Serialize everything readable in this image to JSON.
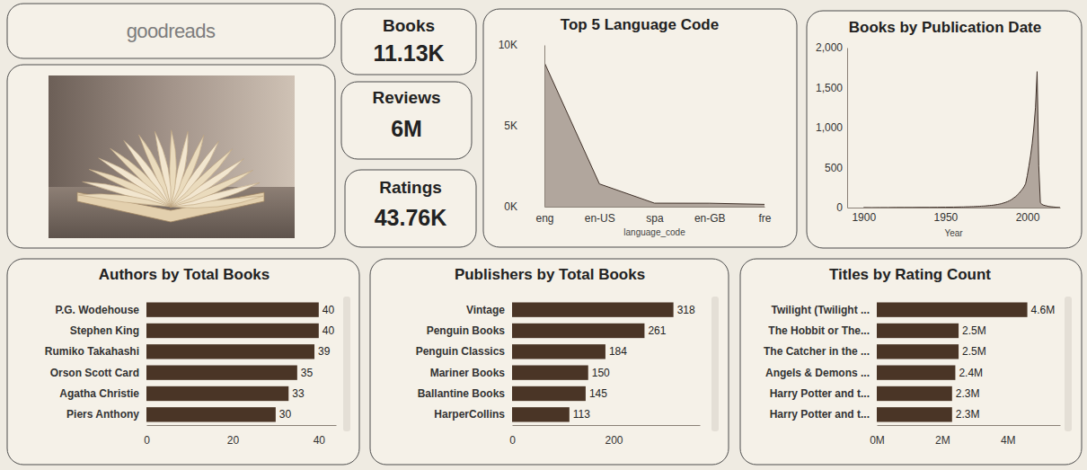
{
  "header": {
    "logo": "goodreads"
  },
  "cards": [
    {
      "title": "Books",
      "value": "11.13K"
    },
    {
      "title": "Reviews",
      "value": "6M"
    },
    {
      "title": "Ratings",
      "value": "43.76K"
    }
  ],
  "chart_data": [
    {
      "type": "area",
      "title": "Top 5 Language Code",
      "x_label": "language_code",
      "categories": [
        "eng",
        "en-US",
        "spa",
        "en-GB",
        "fre"
      ],
      "values": [
        8908,
        1408,
        218,
        214,
        144
      ],
      "color": "#b1a69d",
      "ylim": [
        0,
        10000
      ],
      "yticks": [
        {
          "value": 0,
          "label": "0K"
        },
        {
          "value": 5000,
          "label": "5K"
        },
        {
          "value": 10000,
          "label": "10K"
        }
      ]
    },
    {
      "type": "area",
      "title": "Books by Publication Date",
      "x_label": "Year",
      "x": [
        1900,
        1905,
        1910,
        1915,
        1920,
        1925,
        1930,
        1935,
        1940,
        1945,
        1950,
        1955,
        1960,
        1961,
        1962,
        1963,
        1964,
        1965,
        1966,
        1967,
        1968,
        1969,
        1970,
        1971,
        1972,
        1973,
        1974,
        1975,
        1976,
        1977,
        1978,
        1979,
        1980,
        1981,
        1982,
        1983,
        1984,
        1985,
        1986,
        1987,
        1988,
        1989,
        1990,
        1991,
        1992,
        1993,
        1994,
        1995,
        1996,
        1997,
        1998,
        1999,
        2000,
        2001,
        2002,
        2003,
        2004,
        2005,
        2006,
        2007,
        2008,
        2009,
        2010,
        2011,
        2012,
        2013,
        2014,
        2015,
        2016,
        2017,
        2018,
        2019,
        2020
      ],
      "values": [
        1,
        0,
        1,
        1,
        2,
        2,
        2,
        3,
        3,
        4,
        5,
        6,
        8,
        8,
        9,
        10,
        10,
        11,
        12,
        12,
        13,
        14,
        15,
        16,
        18,
        19,
        20,
        22,
        24,
        26,
        28,
        30,
        33,
        36,
        40,
        44,
        48,
        55,
        60,
        68,
        75,
        85,
        95,
        110,
        125,
        140,
        160,
        180,
        205,
        230,
        260,
        300,
        400,
        520,
        650,
        800,
        1000,
        1250,
        1700,
        520,
        60,
        40,
        30,
        25,
        20,
        15,
        12,
        10,
        8,
        6,
        4,
        3,
        1
      ],
      "color": "#b1a69d",
      "xlim": [
        1890,
        2020
      ],
      "xticks": [
        1900,
        1950,
        2000
      ],
      "ylim": [
        0,
        2000
      ],
      "yticks": [
        0,
        500,
        {
          "value": 1000,
          "label": "1,000"
        },
        {
          "value": 1500,
          "label": "1,500"
        },
        {
          "value": 2000,
          "label": "2,000"
        }
      ]
    },
    {
      "type": "bar",
      "orientation": "horizontal",
      "title": "Authors by Total Books",
      "categories": [
        "P.G. Wodehouse",
        "Stephen King",
        "Rumiko Takahashi",
        "Orson Scott Card",
        "Agatha Christie",
        "Piers Anthony"
      ],
      "values": [
        40,
        40,
        39,
        35,
        33,
        30
      ],
      "color": "#4a3526",
      "data_labels": true,
      "xlim": [
        0,
        44
      ],
      "xticks": [
        0,
        20,
        40
      ]
    },
    {
      "type": "bar",
      "orientation": "horizontal",
      "title": "Publishers by Total Books",
      "categories": [
        "Vintage",
        "Penguin Books",
        "Penguin Classics",
        "Mariner Books",
        "Ballantine Books",
        "HarperCollins"
      ],
      "values": [
        318,
        261,
        184,
        150,
        145,
        113
      ],
      "color": "#4a3526",
      "data_labels": true,
      "xlim": [
        0,
        370
      ],
      "xticks": [
        0,
        200
      ]
    },
    {
      "type": "bar",
      "orientation": "horizontal",
      "title": "Titles by Rating Count",
      "categories": [
        "Twilight (Twilight ...",
        "The Hobbit or The...",
        "The Catcher in the ...",
        "Angels & Demons ...",
        "Harry Potter and t...",
        "Harry Potter and t..."
      ],
      "values": [
        4600000,
        2500000,
        2500000,
        2400000,
        2300000,
        2300000
      ],
      "value_labels": [
        "4.6M",
        "2.5M",
        "2.5M",
        "2.4M",
        "2.3M",
        "2.3M"
      ],
      "color": "#4a3526",
      "data_labels": true,
      "xlim": [
        0,
        5600000
      ],
      "xticks": [
        {
          "value": 0,
          "label": "0M"
        },
        {
          "value": 2000000,
          "label": "2M"
        },
        {
          "value": 4000000,
          "label": "4M"
        }
      ]
    }
  ]
}
